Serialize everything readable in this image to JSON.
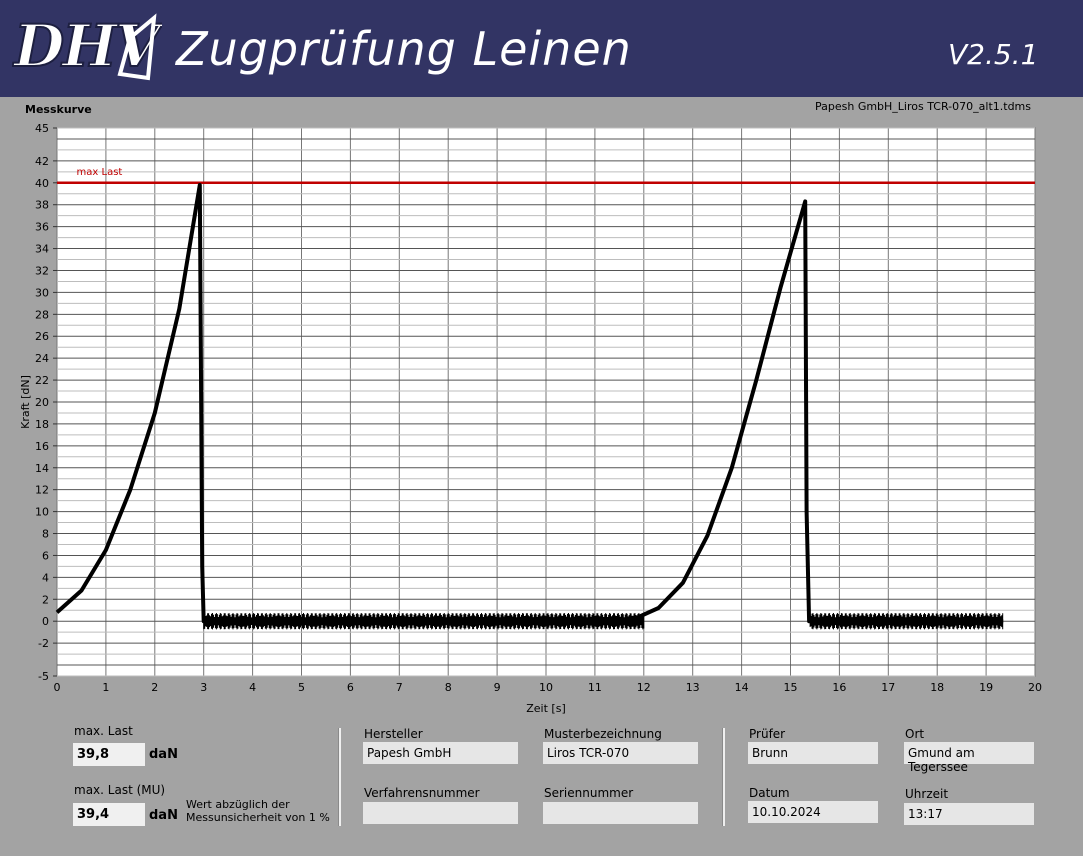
{
  "header": {
    "logo_text": "DHV",
    "title": "Zugprüfung Leinen",
    "version": "V2.5.1"
  },
  "plot": {
    "label": "Messkurve",
    "file_name": "Papesh GmbH_Liros TCR-070_alt1.tdms",
    "reference_line_label": "max Last"
  },
  "chart_data": {
    "type": "line",
    "title": "",
    "xlabel": "Zeit [s]",
    "ylabel": "Kraft [dN]",
    "xlim": [
      0,
      20
    ],
    "ylim": [
      -5,
      45
    ],
    "x_ticks": [
      0,
      1,
      2,
      3,
      4,
      5,
      6,
      7,
      8,
      9,
      10,
      11,
      12,
      13,
      14,
      15,
      16,
      17,
      18,
      19,
      20
    ],
    "y_ticks": [
      -5,
      -2,
      0,
      2,
      4,
      6,
      8,
      10,
      12,
      14,
      16,
      18,
      20,
      22,
      24,
      26,
      28,
      30,
      32,
      34,
      36,
      38,
      40,
      42,
      45
    ],
    "grid": true,
    "reference_line": {
      "label": "max Last",
      "y": 40,
      "color": "#c00000"
    },
    "series": [
      {
        "color": "#000000",
        "points": [
          [
            0,
            0.8
          ],
          [
            0.5,
            2.8
          ],
          [
            1,
            6.5
          ],
          [
            1.5,
            12
          ],
          [
            2,
            19
          ],
          [
            2.5,
            28.5
          ],
          [
            2.92,
            39.8
          ],
          [
            2.97,
            5
          ],
          [
            3.0,
            0
          ],
          [
            6,
            0
          ],
          [
            9,
            0
          ],
          [
            11,
            0
          ],
          [
            11.8,
            0.2
          ],
          [
            12.3,
            1.2
          ],
          [
            12.8,
            3.5
          ],
          [
            13.3,
            7.8
          ],
          [
            13.8,
            14
          ],
          [
            14.3,
            22
          ],
          [
            14.8,
            30.5
          ],
          [
            15.3,
            38.3
          ],
          [
            15.33,
            10
          ],
          [
            15.38,
            0
          ],
          [
            17,
            0
          ],
          [
            19.35,
            0
          ]
        ]
      }
    ]
  },
  "results": {
    "max_load_label": "max. Last",
    "max_load_value": "39,8",
    "max_load_unit": "daN",
    "max_load_mu_label": "max. Last (MU)",
    "max_load_mu_value": "39,4",
    "max_load_mu_unit": "daN",
    "note": "Wert abzüglich der\nMessunsicherheit von 1 %"
  },
  "fields": {
    "hersteller_label": "Hersteller",
    "hersteller_value": "Papesh GmbH",
    "musterbezeichnung_label": "Musterbezeichnung",
    "musterbezeichnung_value": "Liros TCR-070",
    "verfahrensnummer_label": "Verfahrensnummer",
    "verfahrensnummer_value": "",
    "seriennummer_label": "Seriennummer",
    "seriennummer_value": "",
    "pruefer_label": "Prüfer",
    "pruefer_value": "Brunn",
    "ort_label": "Ort",
    "ort_value": "Gmund am Tegerssee",
    "datum_label": "Datum",
    "datum_value": "10.10.2024",
    "uhrzeit_label": "Uhrzeit",
    "uhrzeit_value": "13:17"
  }
}
